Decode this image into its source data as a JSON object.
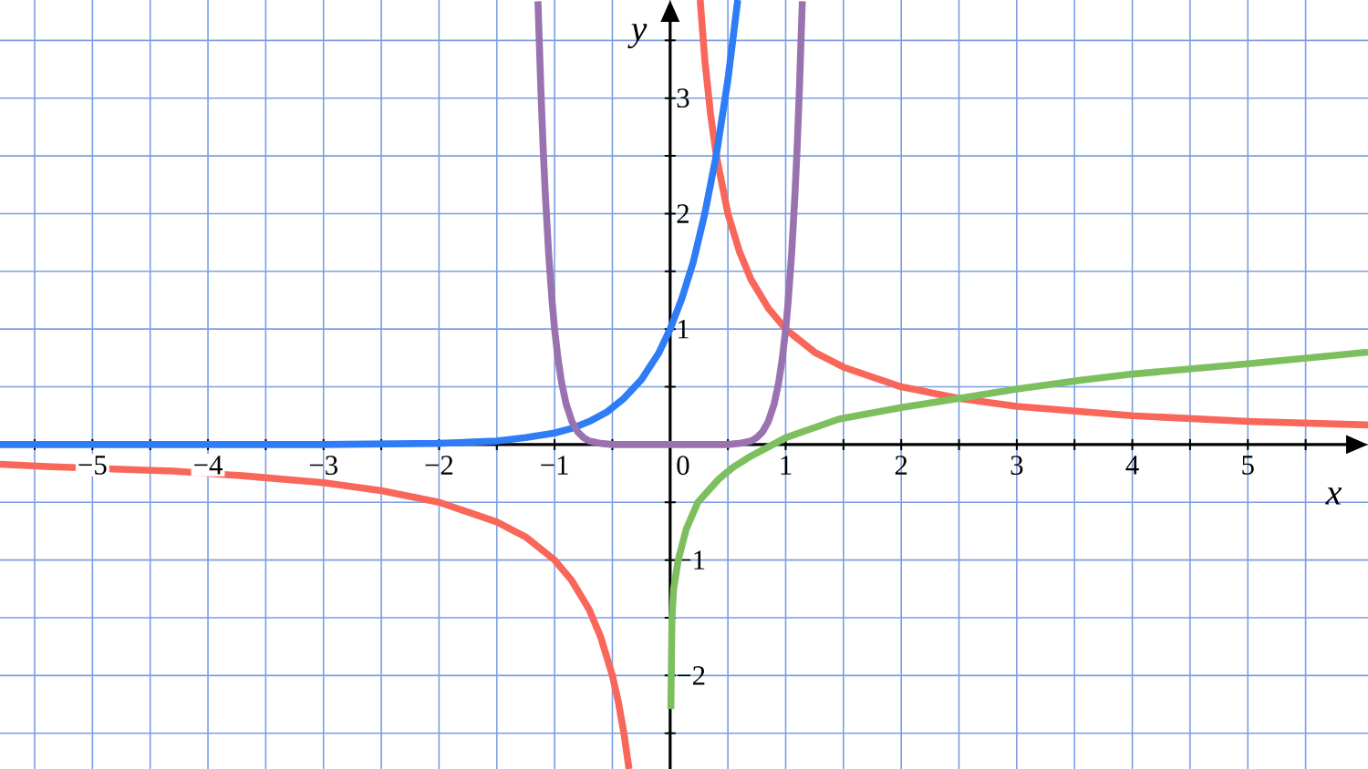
{
  "chart_data": {
    "type": "line",
    "xlabel": "x",
    "ylabel": "y",
    "xlim": [
      -5.8,
      6.04
    ],
    "ylim": [
      -2.81,
      3.85
    ],
    "xticks": [
      {
        "value": -5.5,
        "label": null
      },
      {
        "value": -5,
        "label": "−5"
      },
      {
        "value": -4.5,
        "label": null
      },
      {
        "value": -4,
        "label": "−4"
      },
      {
        "value": -3.5,
        "label": null
      },
      {
        "value": -3,
        "label": "−3"
      },
      {
        "value": -2.5,
        "label": null
      },
      {
        "value": -2,
        "label": "−2"
      },
      {
        "value": -1.5,
        "label": null
      },
      {
        "value": -1,
        "label": "−1"
      },
      {
        "value": -0.5,
        "label": null
      },
      0,
      {
        "value": 0.5,
        "label": null
      },
      1,
      {
        "value": 1.5,
        "label": null
      },
      2,
      {
        "value": 2.5,
        "label": null
      },
      3,
      {
        "value": 3.5,
        "label": null
      },
      4,
      {
        "value": 4.5,
        "label": null
      },
      5,
      {
        "value": 5.5,
        "label": null
      }
    ],
    "yticks": [
      {
        "value": -2.5,
        "label": null
      },
      {
        "value": -2,
        "label": "−2"
      },
      {
        "value": -1.5,
        "label": null
      },
      {
        "value": -1,
        "label": "−1"
      },
      {
        "value": -0.5,
        "label": null
      },
      {
        "value": 0,
        "label": null
      },
      {
        "value": 0.5,
        "label": null
      },
      1,
      {
        "value": 1.5,
        "label": null
      },
      2,
      {
        "value": 2.5,
        "label": null
      },
      3,
      {
        "value": 3.5,
        "label": null
      }
    ],
    "grid": true,
    "series": [
      {
        "color": "#f9665a",
        "x": [
          -5.8,
          -5.4,
          -4.6,
          -4.3,
          -3.7,
          -3,
          -2.5,
          -2,
          -1.5,
          -1.25,
          -1,
          -0.85,
          -0.7,
          -0.6,
          -0.5,
          -0.45,
          -0.4,
          -0.356
        ],
        "values": [
          -0.17,
          -0.19,
          -0.22,
          -0.23,
          -0.27,
          -0.33,
          -0.4,
          -0.5,
          -0.67,
          -0.8,
          -1,
          -1.18,
          -1.43,
          -1.67,
          -2,
          -2.22,
          -2.5,
          -2.81
        ]
      },
      {
        "color": "#f9665a",
        "x": [
          0.26,
          0.3,
          0.35,
          0.4,
          0.5,
          0.6,
          0.7,
          0.85,
          1,
          1.25,
          1.5,
          2,
          2.5,
          3,
          4,
          5,
          6.04
        ],
        "values": [
          3.85,
          3.33,
          2.86,
          2.5,
          2,
          1.67,
          1.43,
          1.18,
          1,
          0.8,
          0.67,
          0.5,
          0.4,
          0.33,
          0.25,
          0.2,
          0.17
        ]
      },
      {
        "color": "#7dbf5f",
        "x": [
          0.006,
          0.016,
          0.03,
          0.07,
          0.14,
          0.24,
          0.42,
          0.54,
          0.7,
          1,
          1.46,
          2,
          2.5,
          3,
          3.57,
          4,
          5,
          6.04
        ],
        "values": [
          -2.29,
          -1.5,
          -1.25,
          -1,
          -0.73,
          -0.5,
          -0.3,
          -0.2,
          -0.1,
          0.06,
          0.22,
          0.32,
          0.4,
          0.48,
          0.56,
          0.61,
          0.7,
          0.8
        ]
      },
      {
        "color": "#2e7cf6",
        "x": [
          -5.8,
          -3,
          -2,
          -1.75,
          -1.5,
          -1.25,
          -1,
          -0.85,
          -0.7,
          -0.55,
          -0.4,
          -0.25,
          -0.1,
          0,
          0.1,
          0.2,
          0.3,
          0.4,
          0.5,
          0.585
        ],
        "values": [
          0,
          0,
          0.01,
          0.02,
          0.03,
          0.06,
          0.1,
          0.14,
          0.2,
          0.28,
          0.4,
          0.56,
          0.79,
          1,
          1.26,
          1.58,
          2,
          2.51,
          3.16,
          3.85
        ]
      },
      {
        "color": "#9a72b0",
        "x": [
          -1.144,
          -1.12,
          -1.1,
          -1.08,
          -1.05,
          -1.02,
          -1,
          -0.97,
          -0.94,
          -0.9,
          -0.85,
          -0.8,
          -0.75,
          -0.7,
          -0.6,
          -0.5,
          0,
          0.5,
          0.6,
          0.7,
          0.75,
          0.8,
          0.85,
          0.9,
          0.94,
          0.97,
          1,
          1.02,
          1.05,
          1.08,
          1.1,
          1.12,
          1.144
        ],
        "values": [
          3.84,
          3.11,
          2.59,
          2.16,
          1.63,
          1.22,
          1,
          0.74,
          0.54,
          0.35,
          0.2,
          0.11,
          0.06,
          0.03,
          0.01,
          0,
          0,
          0,
          0.01,
          0.03,
          0.06,
          0.11,
          0.2,
          0.35,
          0.54,
          0.74,
          1,
          1.22,
          1.63,
          2.16,
          2.59,
          3.11,
          3.84
        ]
      }
    ]
  }
}
